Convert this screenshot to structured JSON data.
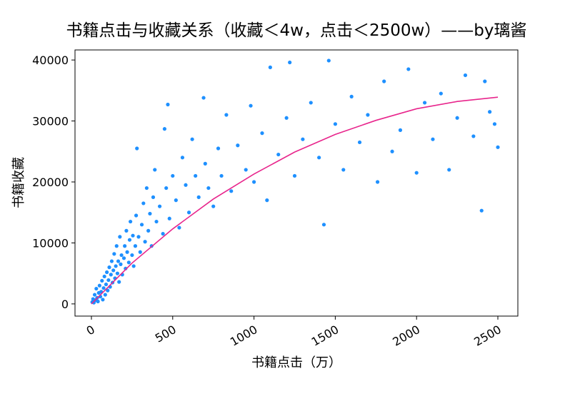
{
  "chart_data": {
    "type": "scatter",
    "title": "书籍点击与收藏关系（收藏＜4w，点击＜2500w）——by璃酱",
    "xlabel": "书籍点击（万）",
    "ylabel": "书籍收藏",
    "xlim": [
      -101,
      2623
    ],
    "ylim": [
      -2000,
      41650
    ],
    "xticks": [
      0,
      500,
      1000,
      1500,
      2000,
      2500
    ],
    "yticks": [
      0,
      10000,
      20000,
      30000,
      40000
    ],
    "points": {
      "color": "#1e90ff",
      "x": [
        5,
        10,
        15,
        20,
        25,
        30,
        35,
        40,
        45,
        50,
        55,
        60,
        65,
        70,
        75,
        80,
        85,
        90,
        95,
        100,
        105,
        110,
        115,
        120,
        125,
        130,
        135,
        140,
        145,
        150,
        155,
        160,
        165,
        170,
        175,
        180,
        185,
        190,
        200,
        205,
        210,
        215,
        220,
        230,
        235,
        240,
        250,
        255,
        260,
        270,
        275,
        280,
        290,
        300,
        310,
        320,
        330,
        340,
        350,
        360,
        370,
        380,
        390,
        400,
        420,
        440,
        450,
        460,
        470,
        480,
        500,
        520,
        540,
        560,
        580,
        600,
        620,
        640,
        660,
        690,
        700,
        720,
        750,
        780,
        800,
        830,
        860,
        900,
        950,
        980,
        1000,
        1050,
        1080,
        1100,
        1150,
        1200,
        1220,
        1250,
        1300,
        1350,
        1400,
        1430,
        1460,
        1500,
        1550,
        1600,
        1650,
        1700,
        1760,
        1800,
        1850,
        1900,
        1950,
        2000,
        2050,
        2100,
        2150,
        2200,
        2250,
        2300,
        2350,
        2400,
        2420,
        2450,
        2480,
        2500
      ],
      "y": [
        300,
        800,
        200,
        1500,
        600,
        2500,
        1000,
        400,
        1800,
        3000,
        1200,
        2000,
        3800,
        700,
        2600,
        4500,
        1500,
        3200,
        5200,
        2200,
        3900,
        6000,
        2800,
        4800,
        7000,
        3500,
        5500,
        8200,
        4200,
        6200,
        9500,
        5000,
        7000,
        3600,
        11000,
        6500,
        8000,
        4800,
        7500,
        9500,
        5800,
        12000,
        8500,
        6800,
        10500,
        13500,
        8000,
        11200,
        6200,
        9500,
        14500,
        25500,
        11000,
        8500,
        13000,
        16500,
        10200,
        19000,
        12000,
        14800,
        9500,
        17500,
        22000,
        13500,
        16000,
        11500,
        28700,
        19000,
        32700,
        14000,
        21000,
        17000,
        12500,
        24000,
        19500,
        15000,
        27000,
        21000,
        17500,
        33800,
        23000,
        19000,
        16000,
        25500,
        21000,
        31000,
        18500,
        26000,
        22000,
        32500,
        20000,
        28000,
        17000,
        38800,
        24500,
        30500,
        39600,
        21000,
        27000,
        33000,
        24000,
        13000,
        39900,
        29500,
        22000,
        34000,
        26500,
        31000,
        20000,
        36500,
        25000,
        28500,
        38500,
        21500,
        33000,
        27000,
        34500,
        22000,
        30500,
        37500,
        27500,
        15300,
        36500,
        31500,
        29500,
        25700
      ]
    },
    "fit": {
      "color": "#e8258c",
      "x": [
        0,
        250,
        500,
        750,
        1000,
        1250,
        1500,
        1750,
        2000,
        2250,
        2500
      ],
      "y": [
        0,
        6700,
        12300,
        17200,
        21300,
        24900,
        27800,
        30100,
        32000,
        33200,
        33900
      ]
    }
  }
}
